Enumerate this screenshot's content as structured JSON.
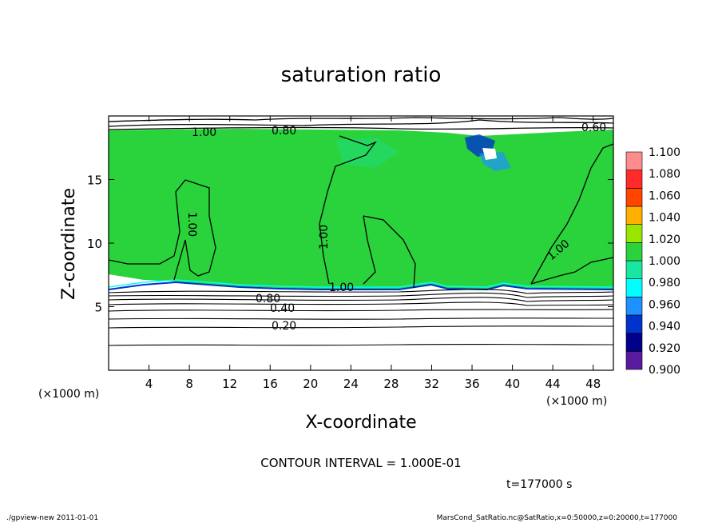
{
  "chart_data": {
    "type": "heatmap",
    "title": "saturation ratio",
    "xlabel": "X-coordinate",
    "ylabel": "Z-coordinate",
    "x_unit": "(×1000 m)",
    "y_unit": "(×1000 m)",
    "xlim": [
      0,
      50
    ],
    "ylim": [
      0,
      20
    ],
    "x_ticks": [
      4,
      8,
      12,
      16,
      20,
      24,
      28,
      32,
      36,
      40,
      44,
      48
    ],
    "y_ticks": [
      5,
      10,
      15
    ],
    "contour_interval_label": "CONTOUR INTERVAL = 1.000E-01",
    "time_label": "t=177000 s",
    "contour_labels": [
      "1.00",
      "0.80",
      "0.60",
      "1.00",
      "1.00",
      "1.00",
      "1.00",
      "0.80",
      "0.40",
      "0.20"
    ],
    "colorbar": {
      "levels": [
        "0.900",
        "0.920",
        "0.940",
        "0.960",
        "0.980",
        "1.000",
        "1.020",
        "1.040",
        "1.060",
        "1.080",
        "1.100"
      ],
      "colors": [
        "#5a1a9e",
        "#00008b",
        "#0033cc",
        "#1e90ff",
        "#00ffff",
        "#19e6a0",
        "#2ad23c",
        "#99e600",
        "#ffb000",
        "#ff4500",
        "#ff2a2a",
        "#ff8c8c"
      ]
    },
    "saturated_region": {
      "z_bottom": 6.2,
      "z_top": 18.7,
      "value": 1.0
    }
  },
  "footer": {
    "left": "./gpview-new  2011-01-01",
    "right": "MarsCond_SatRatio.nc@SatRatio,x=0:50000,z=0:20000,t=177000"
  }
}
